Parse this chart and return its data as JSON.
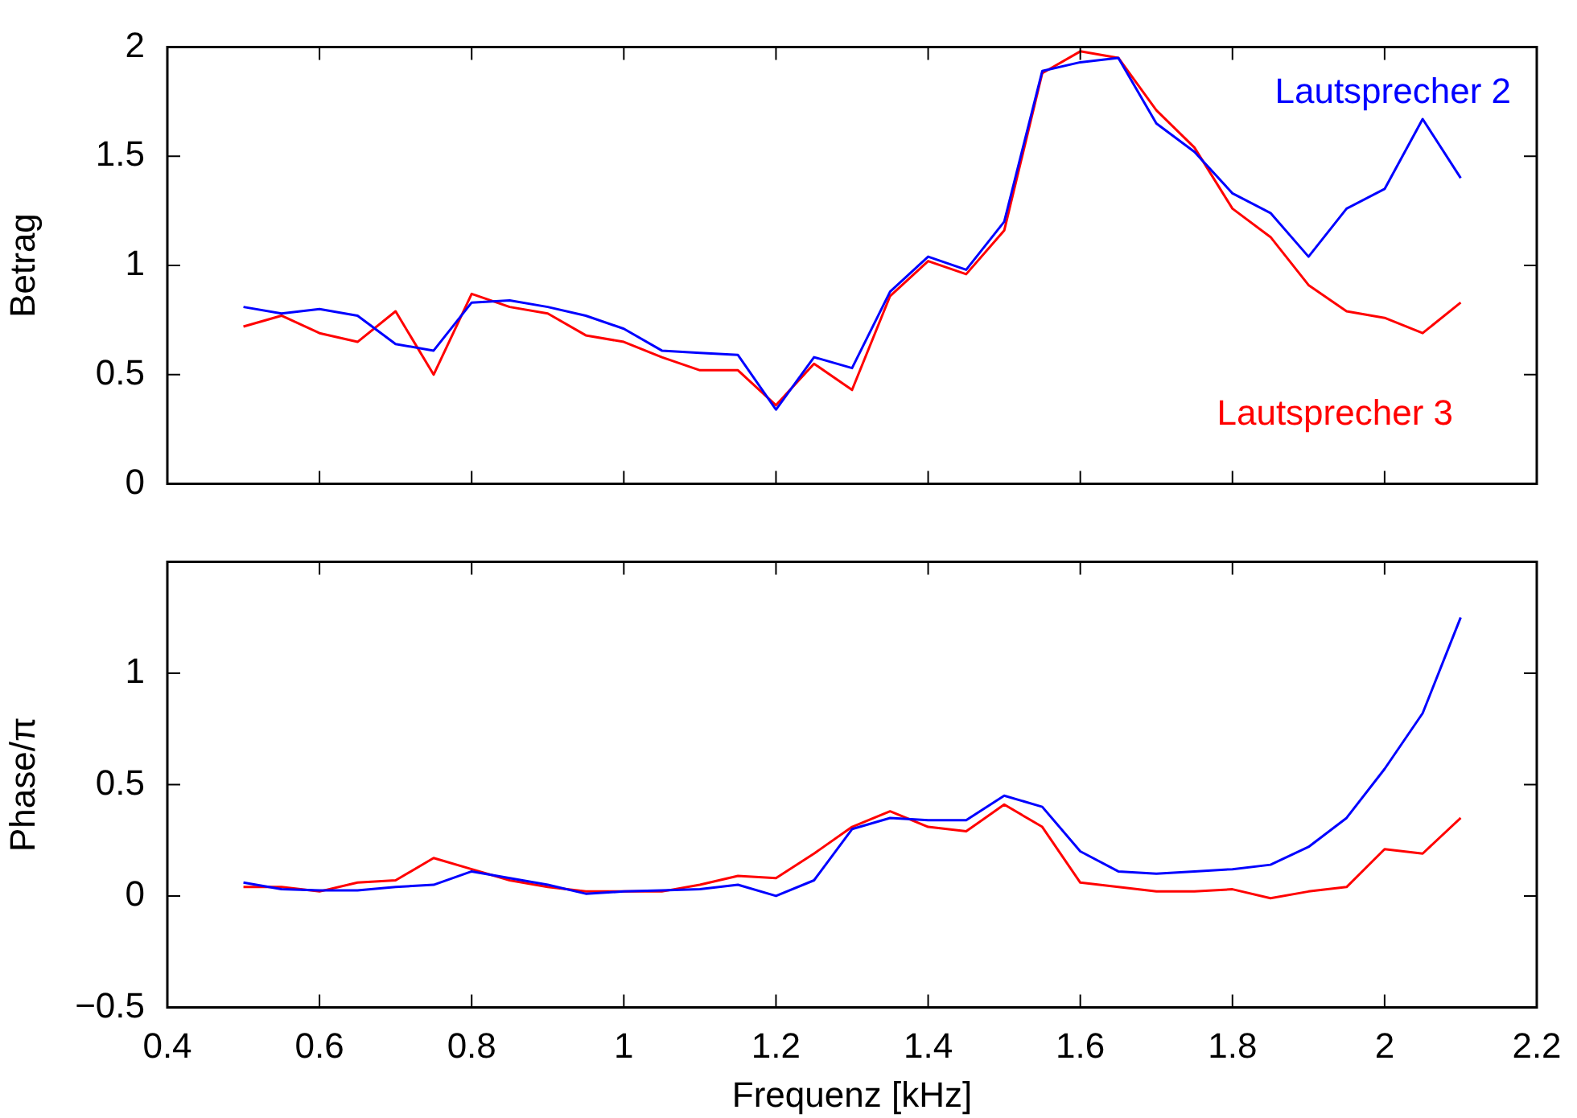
{
  "chart_data": [
    {
      "type": "line",
      "ylabel": "Betrag",
      "x": [
        0.5,
        0.55,
        0.6,
        0.65,
        0.7,
        0.75,
        0.8,
        0.85,
        0.9,
        0.95,
        1.0,
        1.05,
        1.1,
        1.15,
        1.2,
        1.25,
        1.3,
        1.35,
        1.4,
        1.45,
        1.5,
        1.55,
        1.6,
        1.65,
        1.7,
        1.75,
        1.8,
        1.85,
        1.9,
        1.95,
        2.0,
        2.05,
        2.1
      ],
      "xlim": [
        0.4,
        2.2
      ],
      "xticks": [
        0.4,
        0.6,
        0.8,
        1,
        1.2,
        1.4,
        1.6,
        1.8,
        2,
        2.2
      ],
      "ylim": [
        0,
        2
      ],
      "yticks": [
        0,
        0.5,
        1,
        1.5,
        2
      ],
      "tick_labels": "y",
      "marker": "none",
      "line_style": "solid",
      "series": [
        {
          "name": "Lautsprecher 2",
          "color": "#0000ff",
          "values": [
            0.81,
            0.78,
            0.8,
            0.77,
            0.64,
            0.61,
            0.83,
            0.84,
            0.81,
            0.77,
            0.71,
            0.61,
            0.6,
            0.59,
            0.34,
            0.58,
            0.53,
            0.88,
            1.04,
            0.98,
            1.2,
            1.89,
            1.93,
            1.95,
            1.65,
            1.52,
            1.33,
            1.24,
            1.04,
            1.26,
            1.35,
            1.67,
            1.4
          ]
        },
        {
          "name": "Lautsprecher 3",
          "color": "#ff0000",
          "values": [
            0.72,
            0.77,
            0.69,
            0.65,
            0.79,
            0.5,
            0.87,
            0.81,
            0.78,
            0.68,
            0.65,
            0.58,
            0.52,
            0.52,
            0.36,
            0.55,
            0.43,
            0.86,
            1.02,
            0.96,
            1.16,
            1.88,
            1.98,
            1.95,
            1.71,
            1.54,
            1.26,
            1.13,
            0.91,
            0.79,
            0.76,
            0.69,
            0.83
          ]
        }
      ]
    },
    {
      "type": "line",
      "xlabel": "Frequenz [kHz]",
      "ylabel": "Phase/π",
      "x": [
        0.5,
        0.55,
        0.6,
        0.65,
        0.7,
        0.75,
        0.8,
        0.85,
        0.9,
        0.95,
        1.0,
        1.05,
        1.1,
        1.15,
        1.2,
        1.25,
        1.3,
        1.35,
        1.4,
        1.45,
        1.5,
        1.55,
        1.6,
        1.65,
        1.7,
        1.75,
        1.8,
        1.85,
        1.9,
        1.95,
        2.0,
        2.05,
        2.1
      ],
      "xlim": [
        0.4,
        2.2
      ],
      "xticks": [
        0.4,
        0.6,
        0.8,
        1,
        1.2,
        1.4,
        1.6,
        1.8,
        2,
        2.2
      ],
      "ylim": [
        -0.5,
        1.5
      ],
      "yticks": [
        {
          "value": -0.5,
          "label": "−0.5"
        },
        0,
        0.5,
        1,
        {
          "value": 1.5,
          "label": null
        }
      ],
      "marker": "none",
      "line_style": "solid",
      "series": [
        {
          "color": "#0000ff",
          "values": [
            0.06,
            0.03,
            0.025,
            0.025,
            0.04,
            0.05,
            0.11,
            0.08,
            0.05,
            0.01,
            0.02,
            0.025,
            0.03,
            0.05,
            0.0,
            0.07,
            0.3,
            0.35,
            0.34,
            0.34,
            0.45,
            0.4,
            0.2,
            0.11,
            0.1,
            0.11,
            0.12,
            0.14,
            0.22,
            0.35,
            0.57,
            0.82,
            1.25
          ]
        },
        {
          "color": "#ff0000",
          "values": [
            0.04,
            0.04,
            0.02,
            0.06,
            0.07,
            0.17,
            0.12,
            0.07,
            0.04,
            0.02,
            0.02,
            0.02,
            0.05,
            0.09,
            0.08,
            0.19,
            0.31,
            0.38,
            0.31,
            0.29,
            0.41,
            0.31,
            0.06,
            0.04,
            0.02,
            0.02,
            0.03,
            -0.01,
            0.02,
            0.04,
            0.21,
            0.19,
            0.35
          ]
        }
      ]
    }
  ]
}
